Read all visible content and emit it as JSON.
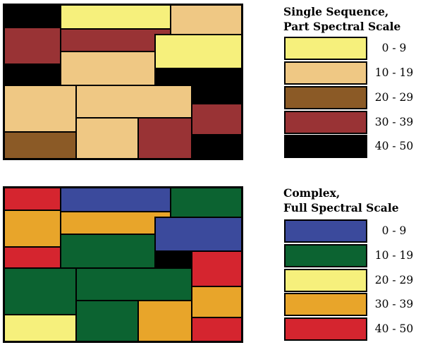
{
  "legend1": {
    "title_line1": "Single Sequence,",
    "title_line2": "Part Spectral Scale",
    "items": [
      {
        "label": "0 - 9",
        "color": "#f6f07c"
      },
      {
        "label": "10 - 19",
        "color": "#efc884"
      },
      {
        "label": "20 - 29",
        "color": "#8b5a26"
      },
      {
        "label": "30 - 39",
        "color": "#993335"
      },
      {
        "label": "40 - 50",
        "color": "#000000"
      }
    ]
  },
  "legend2": {
    "title_line1": "Complex,",
    "title_line2": "Full Spectral Scale",
    "items": [
      {
        "label": "0 - 9",
        "color": "#3b4a9c"
      },
      {
        "label": "10 - 19",
        "color": "#0c6331"
      },
      {
        "label": "20 - 29",
        "color": "#f6f07c"
      },
      {
        "label": "30 - 39",
        "color": "#e8a52a"
      },
      {
        "label": "40 - 50",
        "color": "#d5252f"
      }
    ]
  },
  "map_regions_class": [
    4,
    0,
    1,
    3,
    3,
    1,
    4,
    1,
    0,
    4,
    1,
    1,
    3,
    2,
    0,
    3,
    4
  ]
}
